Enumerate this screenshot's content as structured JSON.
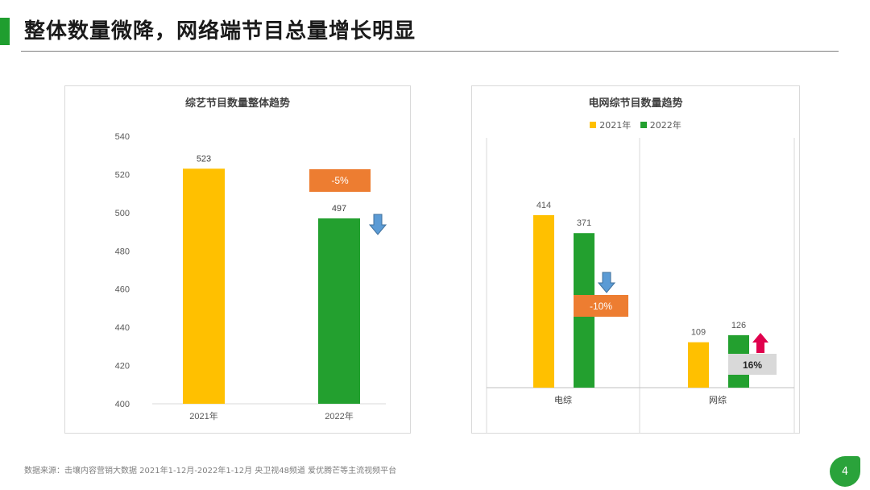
{
  "page": {
    "title": "整体数量微降，网络端节目总量增长明显",
    "source": "数据来源：击壤内容营销大数据 2021年1-12月-2022年1-12月 央卫视48频道 爱优腾芒等主流视频平台",
    "page_number": "4"
  },
  "colors": {
    "year_2021": "#ffc000",
    "year_2022": "#23a02f",
    "accent": "#1f9e2f",
    "callout_orange": "#ed7d31",
    "down_arrow": "#5b9bd5",
    "up_arrow": "#e0004d",
    "callout_gray": "#d9d9d9"
  },
  "chart_data": [
    {
      "type": "bar",
      "title": "综艺节目数量整体趋势",
      "categories": [
        "2021年",
        "2022年"
      ],
      "values": [
        523,
        497
      ],
      "data_labels": [
        "523",
        "497"
      ],
      "ylim": [
        400,
        540
      ],
      "yticks": [
        400,
        420,
        440,
        460,
        480,
        500,
        520,
        540
      ],
      "grid": false,
      "annotation": {
        "text": "-5%",
        "direction": "down",
        "icon": "down-arrow-icon"
      }
    },
    {
      "type": "bar",
      "title": "电网综节目数量趋势",
      "categories": [
        "电综",
        "网综"
      ],
      "legend_position": "top",
      "series": [
        {
          "name": "2021年",
          "values": [
            414,
            109
          ]
        },
        {
          "name": "2022年",
          "values": [
            371,
            126
          ]
        }
      ],
      "ylim": [
        0,
        500
      ],
      "grid": false,
      "annotations": [
        {
          "category": "电综",
          "text": "-10%",
          "direction": "down",
          "icon": "down-arrow-icon"
        },
        {
          "category": "网综",
          "text": "16%",
          "direction": "up",
          "icon": "up-arrow-icon"
        }
      ]
    }
  ]
}
